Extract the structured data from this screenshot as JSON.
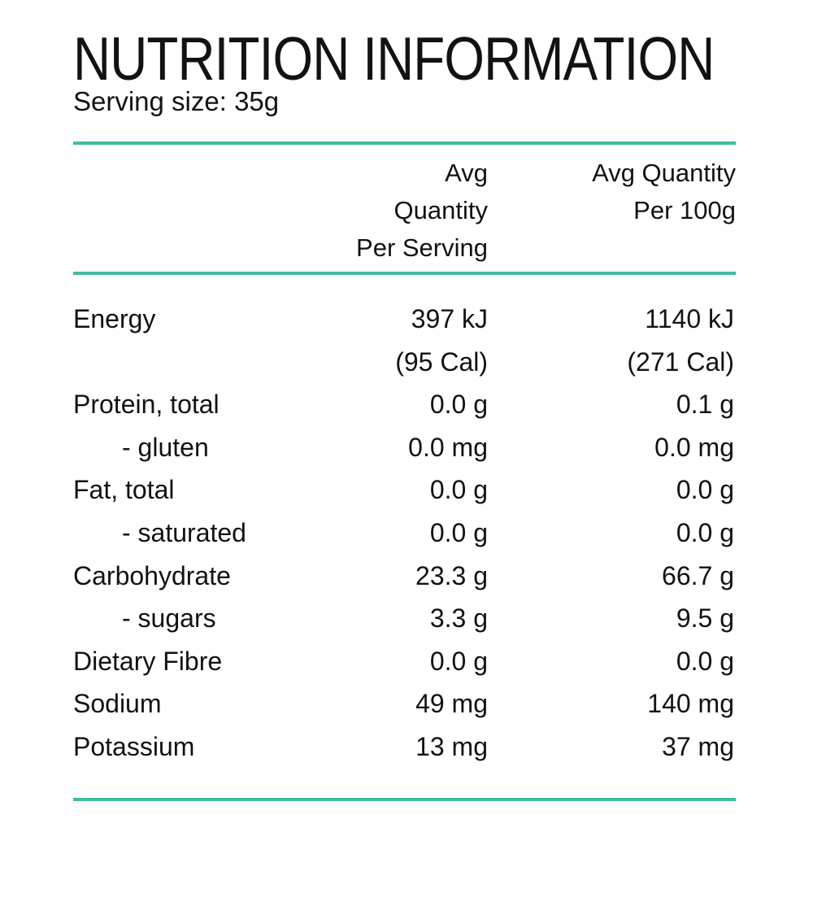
{
  "colors": {
    "accent": "#42bc9e",
    "text": "#121212"
  },
  "title": "NUTRITION INFORMATION",
  "serving_size": "Serving size: 35g",
  "table": {
    "header": {
      "per_serving": {
        "line1": "Avg Quantity",
        "line2": "Per Serving"
      },
      "per_100g": {
        "line1": "Avg Quantity",
        "line2": "Per 100g"
      }
    },
    "rows": [
      {
        "label": "Energy",
        "per_serving": "397 kJ",
        "per_100g": "1140 kJ"
      },
      {
        "label": "",
        "per_serving": "(95 Cal)",
        "per_100g": "(271 Cal)"
      },
      {
        "label": "Protein, total",
        "per_serving": "0.0 g",
        "per_100g": "0.1 g"
      },
      {
        "label": "- gluten",
        "per_serving": "0.0 mg",
        "per_100g": "0.0 mg"
      },
      {
        "label": "Fat, total",
        "per_serving": "0.0 g",
        "per_100g": "0.0 g"
      },
      {
        "label": "- saturated",
        "per_serving": "0.0 g",
        "per_100g": "0.0 g"
      },
      {
        "label": "Carbohydrate",
        "per_serving": "23.3 g",
        "per_100g": "66.7 g"
      },
      {
        "label": "- sugars",
        "per_serving": "3.3 g",
        "per_100g": "9.5 g"
      },
      {
        "label": "Dietary Fibre",
        "per_serving": "0.0 g",
        "per_100g": "0.0 g"
      },
      {
        "label": "Sodium",
        "per_serving": "49 mg",
        "per_100g": "140 mg"
      },
      {
        "label": "Potassium",
        "per_serving": "13 mg",
        "per_100g": "37 mg"
      }
    ]
  }
}
